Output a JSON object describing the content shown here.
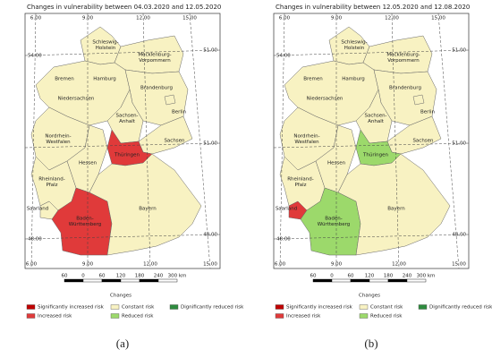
{
  "panels": [
    {
      "title": "Changes in vulnerability between 04.03.2020 and 12.05.2020",
      "left_labels": [
        "54.00",
        "48.00"
      ],
      "right_labels": [
        "51.00",
        "51.00",
        "48.00"
      ],
      "top_labels": [
        "6.00",
        "9.00",
        "12.00",
        "15.00"
      ],
      "bottom_labels": [
        "6.00",
        "9.00",
        "12.00",
        "15.00"
      ],
      "states": [
        {
          "label": [
            "Schleswig-",
            "Holstein"
          ],
          "color": "#f8f2c2"
        },
        {
          "label": [
            "Mecklenburg-",
            "Vorpommern"
          ],
          "color": "#f8f2c2"
        },
        {
          "label": [
            "Hamburg"
          ],
          "color": "#f8f2c2"
        },
        {
          "label": [
            "Bremen"
          ],
          "color": "#e03a3a"
        },
        {
          "label": [
            "Niedersachsen"
          ],
          "color": "#f8f2c2"
        },
        {
          "label": [
            "Brandenburg"
          ],
          "color": "#f8f2c2"
        },
        {
          "label": [
            "Berlin"
          ],
          "color": "#f8f2c2"
        },
        {
          "label": [
            "Sachsen-",
            "Anhalt"
          ],
          "color": "#f8f2c2"
        },
        {
          "label": [
            "Sachsen"
          ],
          "color": "#f8f2c2"
        },
        {
          "label": [
            "Nordrhein-",
            "Westfalen"
          ],
          "color": "#f8f2c2"
        },
        {
          "label": [
            "Hessen"
          ],
          "color": "#f8f2c2"
        },
        {
          "label": [
            "Thüringen"
          ],
          "color": "#e03a3a"
        },
        {
          "label": [
            "Rheinland-",
            "Pfalz"
          ],
          "color": "#f8f2c2"
        },
        {
          "label": [
            "Saarland"
          ],
          "color": "#f8f2c2"
        },
        {
          "label": [
            "Baden-",
            "Württemberg"
          ],
          "color": "#e03a3a"
        },
        {
          "label": [
            "Bayern"
          ],
          "color": "#f8f2c2"
        }
      ],
      "scale_labels": [
        "60",
        "0",
        "60",
        "120",
        "180",
        "240",
        "300 km"
      ],
      "legend_title": "Changes",
      "legend": [
        {
          "label": "Significantly increased risk",
          "color": "#c00000"
        },
        {
          "label": "Increased risk",
          "color": "#e03a3a"
        },
        {
          "label": "Constant risk",
          "color": "#f8f2c2"
        },
        {
          "label": "Reduced risk",
          "color": "#9cd96b"
        },
        {
          "label": "Dignificantly reduced risk",
          "color": "#2e8b3e"
        }
      ],
      "caption": "(a)"
    },
    {
      "title": "Changes in vulnerability between 12.05.2020 and 12.08.2020",
      "left_labels": [
        "54.00",
        "48.00"
      ],
      "right_labels": [
        "51.00",
        "51.00",
        "48.00"
      ],
      "top_labels": [
        "6.00",
        "9.00",
        "12.00",
        "15.00"
      ],
      "bottom_labels": [
        "6.00",
        "9.00",
        "12.00",
        "15.00"
      ],
      "states": [
        {
          "label": [
            "Schleswig-",
            "Holstein"
          ],
          "color": "#f8f2c2"
        },
        {
          "label": [
            "Mecklenburg-",
            "Vorpommern"
          ],
          "color": "#f8f2c2"
        },
        {
          "label": [
            "Hamburg"
          ],
          "color": "#f8f2c2"
        },
        {
          "label": [
            "Bremen"
          ],
          "color": "#f8f2c2"
        },
        {
          "label": [
            "Niedersachsen"
          ],
          "color": "#f8f2c2"
        },
        {
          "label": [
            "Brandenburg"
          ],
          "color": "#f8f2c2"
        },
        {
          "label": [
            "Berlin"
          ],
          "color": "#f8f2c2"
        },
        {
          "label": [
            "Sachsen-",
            "Anhalt"
          ],
          "color": "#f8f2c2"
        },
        {
          "label": [
            "Sachsen"
          ],
          "color": "#f8f2c2"
        },
        {
          "label": [
            "Nordrhein-",
            "Westfalen"
          ],
          "color": "#f8f2c2"
        },
        {
          "label": [
            "Hessen"
          ],
          "color": "#f8f2c2"
        },
        {
          "label": [
            "Thüringen"
          ],
          "color": "#9cd96b"
        },
        {
          "label": [
            "Rheinland-",
            "Pfalz"
          ],
          "color": "#f8f2c2"
        },
        {
          "label": [
            "Saarland"
          ],
          "color": "#e03a3a"
        },
        {
          "label": [
            "Baden-",
            "Württemberg"
          ],
          "color": "#9cd96b"
        },
        {
          "label": [
            "Bayern"
          ],
          "color": "#f8f2c2"
        }
      ],
      "scale_labels": [
        "60",
        "0",
        "60",
        "120",
        "180",
        "240",
        "300 km"
      ],
      "legend_title": "Changes",
      "legend": [
        {
          "label": "Significantly increased risk",
          "color": "#c00000"
        },
        {
          "label": "Increased risk",
          "color": "#e03a3a"
        },
        {
          "label": "Constant risk",
          "color": "#f8f2c2"
        },
        {
          "label": "Reduced risk",
          "color": "#9cd96b"
        },
        {
          "label": "Dignificantly reduced risk",
          "color": "#2e8b3e"
        }
      ],
      "caption": "(b)"
    }
  ]
}
